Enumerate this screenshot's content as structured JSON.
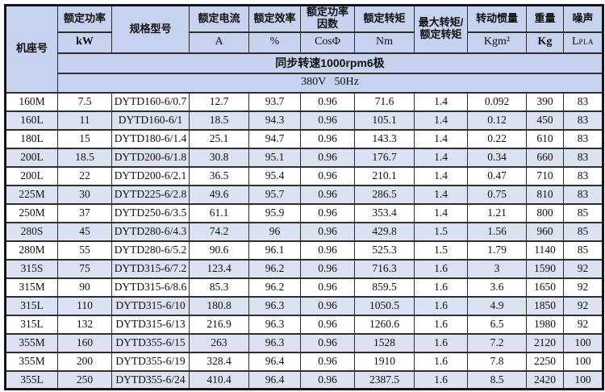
{
  "colors": {
    "header_bg": "#c6d2ee",
    "stripe_bg": "#dce2f2",
    "grid": "#2e2e2e",
    "outer_border": "#151515"
  },
  "table": {
    "header": {
      "frame_label": "机座号",
      "power": {
        "title": "额定功率",
        "unit": "kW"
      },
      "model": {
        "title": "规格型号"
      },
      "current": {
        "title": "额定电流",
        "unit": "A"
      },
      "efficiency": {
        "title": "额定效率",
        "unit": "%"
      },
      "power_factor": {
        "title": "额定功率因数",
        "unit": "CosΦ"
      },
      "torque": {
        "title": "额定转矩",
        "unit": "Nm"
      },
      "max_torque_ratio": {
        "title": "最大转矩/额定转矩"
      },
      "inertia": {
        "title": "转动惯量",
        "unit": "Kgm²"
      },
      "weight": {
        "title": "重量",
        "unit": "Kg"
      },
      "noise": {
        "title": "噪声",
        "unit_main": "L",
        "unit_sub": "PLA"
      }
    },
    "banner": {
      "line1": "同步转速1000rpm6极",
      "line2": "380V   50Hz"
    },
    "rows": [
      [
        "160M",
        "7.5",
        "DYTD160-6/0.7",
        "12.7",
        "93.7",
        "0.96",
        "71.6",
        "1.4",
        "0.092",
        "390",
        "83"
      ],
      [
        "160L",
        "11",
        "DYTD160-6/1",
        "18.5",
        "94.3",
        "0.96",
        "105.1",
        "1.4",
        "0.12",
        "450",
        "83"
      ],
      [
        "180L",
        "15",
        "DYTD180-6/1.4",
        "25.1",
        "94.7",
        "0.96",
        "143.3",
        "1.4",
        "0.22",
        "610",
        "83"
      ],
      [
        "200L",
        "18.5",
        "DYTD200-6/1.8",
        "30.8",
        "95.1",
        "0.96",
        "176.7",
        "1.4",
        "0.34",
        "660",
        "83"
      ],
      [
        "200L",
        "22",
        "DYTD200-6/2.1",
        "36.5",
        "95.4",
        "0.96",
        "210.1",
        "1.4",
        "0.47",
        "710",
        "83"
      ],
      [
        "225M",
        "30",
        "DYTD225-6/2.8",
        "49.6",
        "95.7",
        "0.96",
        "286.5",
        "1.4",
        "0.75",
        "810",
        "83"
      ],
      [
        "250M",
        "37",
        "DYTD250-6/3.5",
        "61.1",
        "95.9",
        "0.96",
        "353.4",
        "1.4",
        "1.21",
        "800",
        "85"
      ],
      [
        "280S",
        "45",
        "DYTD280-6/4.3",
        "74.2",
        "96",
        "0.96",
        "429.8",
        "1.5",
        "1.56",
        "960",
        "85"
      ],
      [
        "280M",
        "55",
        "DYTD280-6/5.2",
        "90.6",
        "96.1",
        "0.96",
        "525.3",
        "1.5",
        "1.79",
        "1140",
        "85"
      ],
      [
        "315S",
        "75",
        "DYTD315-6/7.2",
        "123.4",
        "96.2",
        "0.96",
        "716.3",
        "1.6",
        "3",
        "1590",
        "92"
      ],
      [
        "315M",
        "90",
        "DYTD315-6/8.6",
        "85.3",
        "96.2",
        "0.96",
        "859.5",
        "1.6",
        "3.6",
        "1650",
        "92"
      ],
      [
        "315L",
        "110",
        "DYTD315-6/10",
        "180.8",
        "96.3",
        "0.96",
        "1050.5",
        "1.6",
        "4.9",
        "1850",
        "92"
      ],
      [
        "315L",
        "132",
        "DYTD315-6/13",
        "216.9",
        "96.3",
        "0.96",
        "1260.6",
        "1.6",
        "6.5",
        "1980",
        "92"
      ],
      [
        "355M",
        "160",
        "DYTD355-6/15",
        "263",
        "96.3",
        "0.96",
        "1528",
        "1.6",
        "7.2",
        "2120",
        "100"
      ],
      [
        "355M",
        "200",
        "DYTD355-6/19",
        "328.4",
        "96.4",
        "0.96",
        "1910",
        "1.6",
        "7.8",
        "2250",
        "100"
      ],
      [
        "355L",
        "250",
        "DYTD355-6/24",
        "410.4",
        "96.4",
        "0.96",
        "2387.5",
        "1.6",
        "8.5",
        "2420",
        "100"
      ]
    ]
  }
}
